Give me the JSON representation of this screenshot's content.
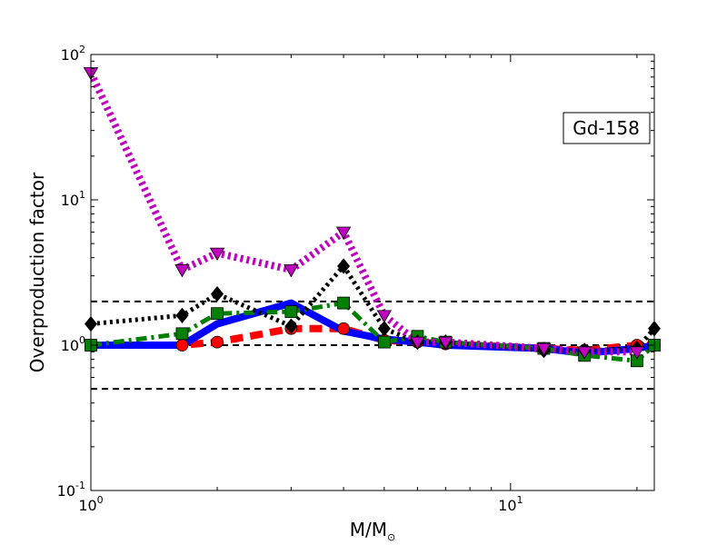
{
  "chart_data": {
    "type": "line",
    "xscale": "log",
    "yscale": "log",
    "xlim": [
      1,
      22
    ],
    "ylim": [
      0.1,
      100
    ],
    "xlabel": "M/M",
    "xlabel_sub": "⊙",
    "ylabel": "Overproduction factor",
    "x_ticks": [
      {
        "value": 1,
        "base": "10",
        "exp": "0"
      },
      {
        "value": 10,
        "base": "10",
        "exp": "1"
      }
    ],
    "y_ticks": [
      {
        "value": 0.1,
        "base": "10",
        "exp": "-1"
      },
      {
        "value": 1,
        "base": "10",
        "exp": "0"
      },
      {
        "value": 10,
        "base": "10",
        "exp": "1"
      },
      {
        "value": 100,
        "base": "10",
        "exp": "2"
      }
    ],
    "annotation": "Gd-158",
    "annotation_position": "top-right",
    "reference_lines": [
      {
        "y": 2.0,
        "style": "dashed",
        "color": "#000000"
      },
      {
        "y": 1.0,
        "style": "dashed",
        "color": "#000000"
      },
      {
        "y": 0.5,
        "style": "dashed",
        "color": "#000000"
      }
    ],
    "series": [
      {
        "color": "#ff0000",
        "dash": "dashed",
        "width": 8,
        "marker": "circle",
        "x": [
          1,
          1.65,
          2,
          3,
          4,
          5,
          6,
          7,
          12,
          15,
          20,
          22
        ],
        "y": [
          1.0,
          1.0,
          1.05,
          1.3,
          1.3,
          1.08,
          1.05,
          1.02,
          0.95,
          0.92,
          1.0,
          1.0
        ]
      },
      {
        "color": "#0000ff",
        "dash": "solid",
        "width": 8,
        "marker": "none",
        "x": [
          1,
          1.65,
          2,
          3,
          4,
          5,
          6,
          7,
          12,
          15,
          20,
          22
        ],
        "y": [
          1.0,
          1.0,
          1.4,
          1.95,
          1.25,
          1.1,
          1.05,
          1.0,
          0.95,
          0.88,
          0.95,
          1.0
        ]
      },
      {
        "color": "#008000",
        "dash": "dashdot",
        "width": 5,
        "marker": "square",
        "x": [
          1,
          1.65,
          2,
          3,
          4,
          5,
          6,
          7,
          12,
          15,
          20,
          22
        ],
        "y": [
          1.0,
          1.2,
          1.65,
          1.7,
          1.95,
          1.05,
          1.15,
          1.05,
          0.95,
          0.85,
          0.78,
          1.0
        ]
      },
      {
        "color": "#000000",
        "dash": "dotted",
        "width": 5,
        "marker": "diamond",
        "x": [
          1,
          1.65,
          2,
          3,
          4,
          5,
          6,
          7,
          12,
          15,
          20,
          22
        ],
        "y": [
          1.4,
          1.6,
          2.25,
          1.35,
          3.5,
          1.3,
          1.05,
          1.05,
          0.92,
          0.92,
          0.95,
          1.3
        ]
      },
      {
        "color": "#bf00bf",
        "dash": "dotted",
        "width": 8,
        "marker": "triangle-down",
        "x": [
          1,
          1.65,
          2,
          3,
          4,
          5,
          6,
          7,
          12,
          15,
          20
        ],
        "y": [
          75,
          3.3,
          4.3,
          3.3,
          6.0,
          1.6,
          1.05,
          1.05,
          0.95,
          0.9,
          0.9
        ]
      }
    ]
  }
}
